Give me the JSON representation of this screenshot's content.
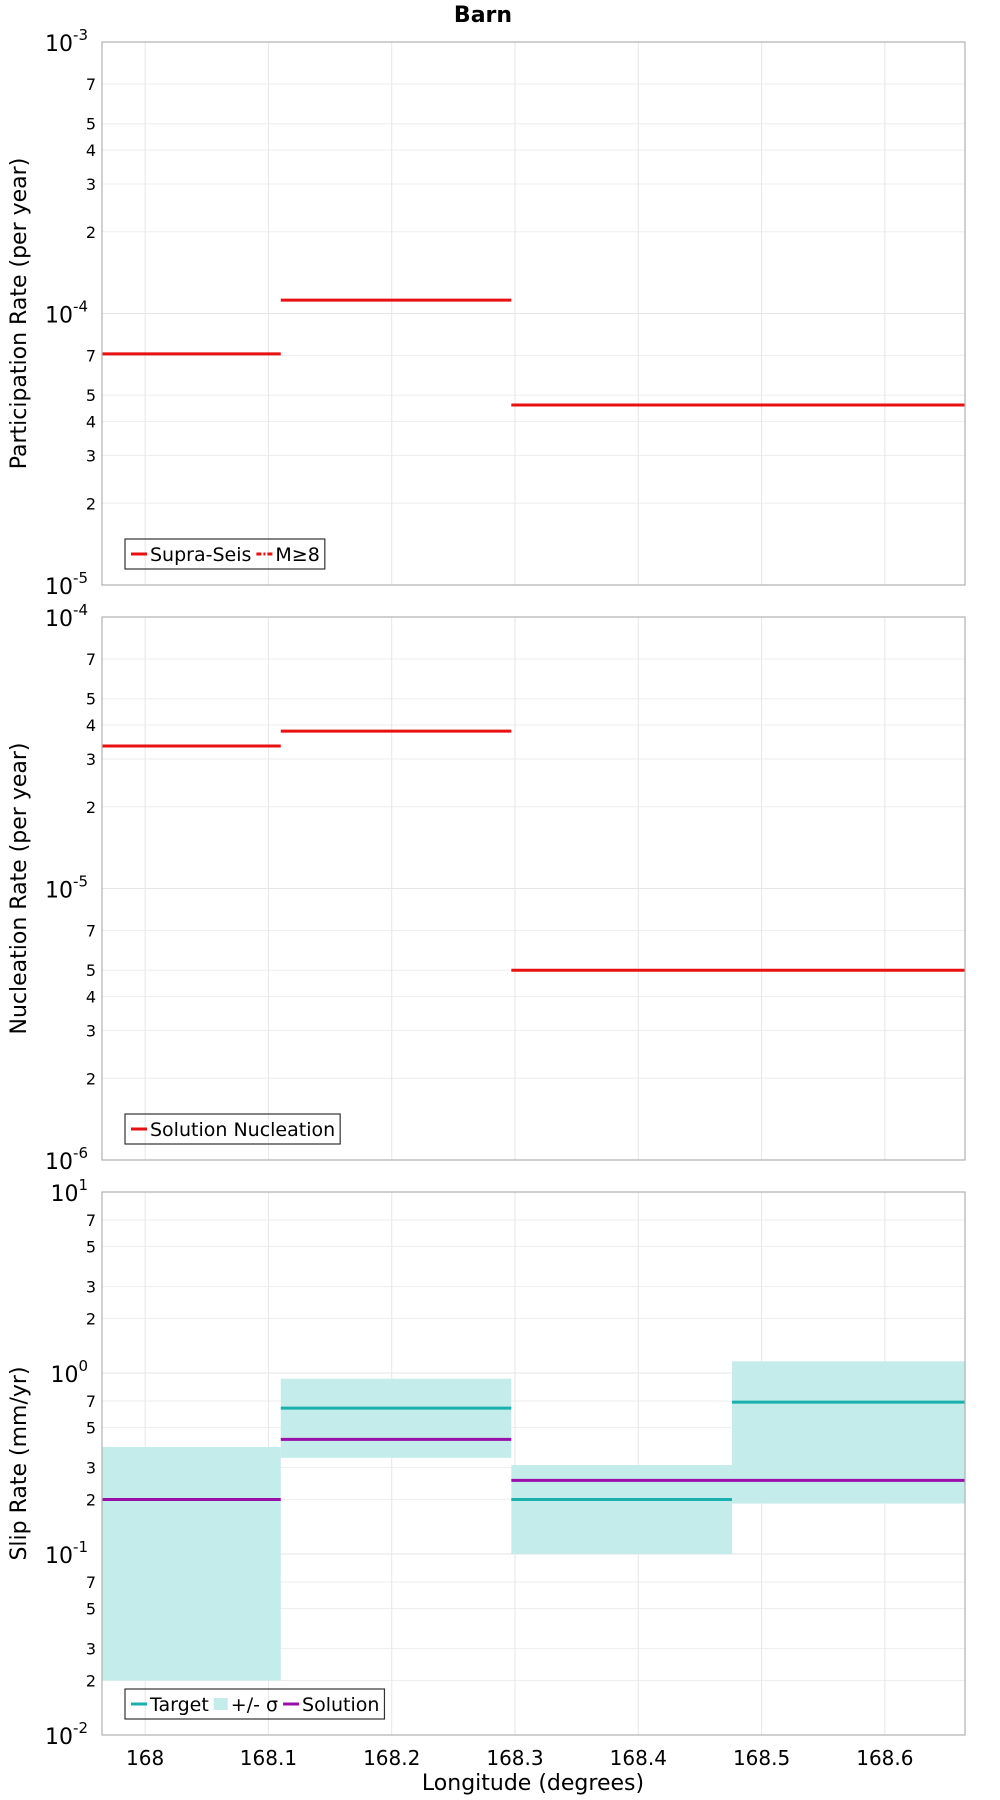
{
  "figure_title": "Barn",
  "chart_data": [
    {
      "type": "line",
      "name": "participation",
      "ylabel": "Participation Rate (per year)",
      "yscale": "log",
      "ylim": [
        1e-05,
        0.001
      ],
      "xlim": [
        167.965,
        168.665
      ],
      "major_exponents": [
        -5,
        -4,
        -3
      ],
      "minor_ticks": [
        2,
        3,
        4,
        5,
        7
      ],
      "grid": true,
      "legend_position": "bottom-left",
      "legend": [
        {
          "label": "Supra-Seis",
          "style": "solid",
          "color": "#e81010"
        },
        {
          "label": "M≥8",
          "style": "dashdot",
          "color": "#e81010"
        }
      ],
      "series": [
        {
          "name": "Supra-Seis",
          "color": "#e81010",
          "segments": [
            {
              "x0": 167.965,
              "x1": 168.11,
              "y": 7.1e-05
            },
            {
              "x0": 168.11,
              "x1": 168.297,
              "y": 0.000112
            },
            {
              "x0": 168.297,
              "x1": 168.476,
              "y": 4.6e-05
            },
            {
              "x0": 168.476,
              "x1": 168.665,
              "y": 4.6e-05
            }
          ]
        }
      ]
    },
    {
      "type": "line",
      "name": "nucleation",
      "ylabel": "Nucleation Rate (per year)",
      "yscale": "log",
      "ylim": [
        1e-06,
        0.0001
      ],
      "xlim": [
        167.965,
        168.665
      ],
      "major_exponents": [
        -6,
        -5,
        -4
      ],
      "minor_ticks": [
        2,
        3,
        4,
        5,
        7
      ],
      "grid": true,
      "legend_position": "bottom-left",
      "legend": [
        {
          "label": "Solution Nucleation",
          "style": "solid",
          "color": "#e81010"
        }
      ],
      "series": [
        {
          "name": "Solution Nucleation",
          "color": "#e81010",
          "segments": [
            {
              "x0": 167.965,
              "x1": 168.11,
              "y": 3.35e-05
            },
            {
              "x0": 168.11,
              "x1": 168.297,
              "y": 3.8e-05
            },
            {
              "x0": 168.297,
              "x1": 168.476,
              "y": 5e-06
            },
            {
              "x0": 168.476,
              "x1": 168.665,
              "y": 5e-06
            }
          ]
        }
      ]
    },
    {
      "type": "line",
      "name": "slip",
      "ylabel": "Slip Rate (mm/yr)",
      "xlabel": "Longitude (degrees)",
      "yscale": "log",
      "ylim": [
        0.01,
        10
      ],
      "xlim": [
        167.965,
        168.665
      ],
      "major_exponents": [
        -2,
        -1,
        0,
        1
      ],
      "minor_ticks": [
        2,
        3,
        5,
        7
      ],
      "xticks": [
        "168",
        "168.1",
        "168.2",
        "168.3",
        "168.4",
        "168.5",
        "168.6"
      ],
      "grid": true,
      "legend_position": "bottom-left",
      "legend": [
        {
          "label": "Target",
          "style": "solid",
          "color": "#1ab0ad"
        },
        {
          "label": "+/- σ",
          "style": "band",
          "color": "#c3ecea"
        },
        {
          "label": "Solution",
          "style": "solid",
          "color": "#9a0faa"
        }
      ],
      "bands": [
        {
          "x0": 167.965,
          "x1": 168.11,
          "low": 0.02,
          "high": 0.39
        },
        {
          "x0": 168.11,
          "x1": 168.297,
          "low": 0.34,
          "high": 0.93
        },
        {
          "x0": 168.297,
          "x1": 168.476,
          "low": 0.1,
          "high": 0.31
        },
        {
          "x0": 168.476,
          "x1": 168.665,
          "low": 0.19,
          "high": 1.16
        }
      ],
      "series": [
        {
          "name": "Target",
          "color": "#1ab0ad",
          "segments": [
            {
              "x0": 168.11,
              "x1": 168.297,
              "y": 0.64
            },
            {
              "x0": 168.297,
              "x1": 168.476,
              "y": 0.2
            },
            {
              "x0": 168.476,
              "x1": 168.665,
              "y": 0.69
            }
          ]
        },
        {
          "name": "Solution",
          "color": "#9a0faa",
          "segments": [
            {
              "x0": 167.965,
              "x1": 168.11,
              "y": 0.2
            },
            {
              "x0": 168.11,
              "x1": 168.297,
              "y": 0.43
            },
            {
              "x0": 168.297,
              "x1": 168.476,
              "y": 0.255
            },
            {
              "x0": 168.476,
              "x1": 168.665,
              "y": 0.255
            }
          ]
        }
      ]
    }
  ]
}
